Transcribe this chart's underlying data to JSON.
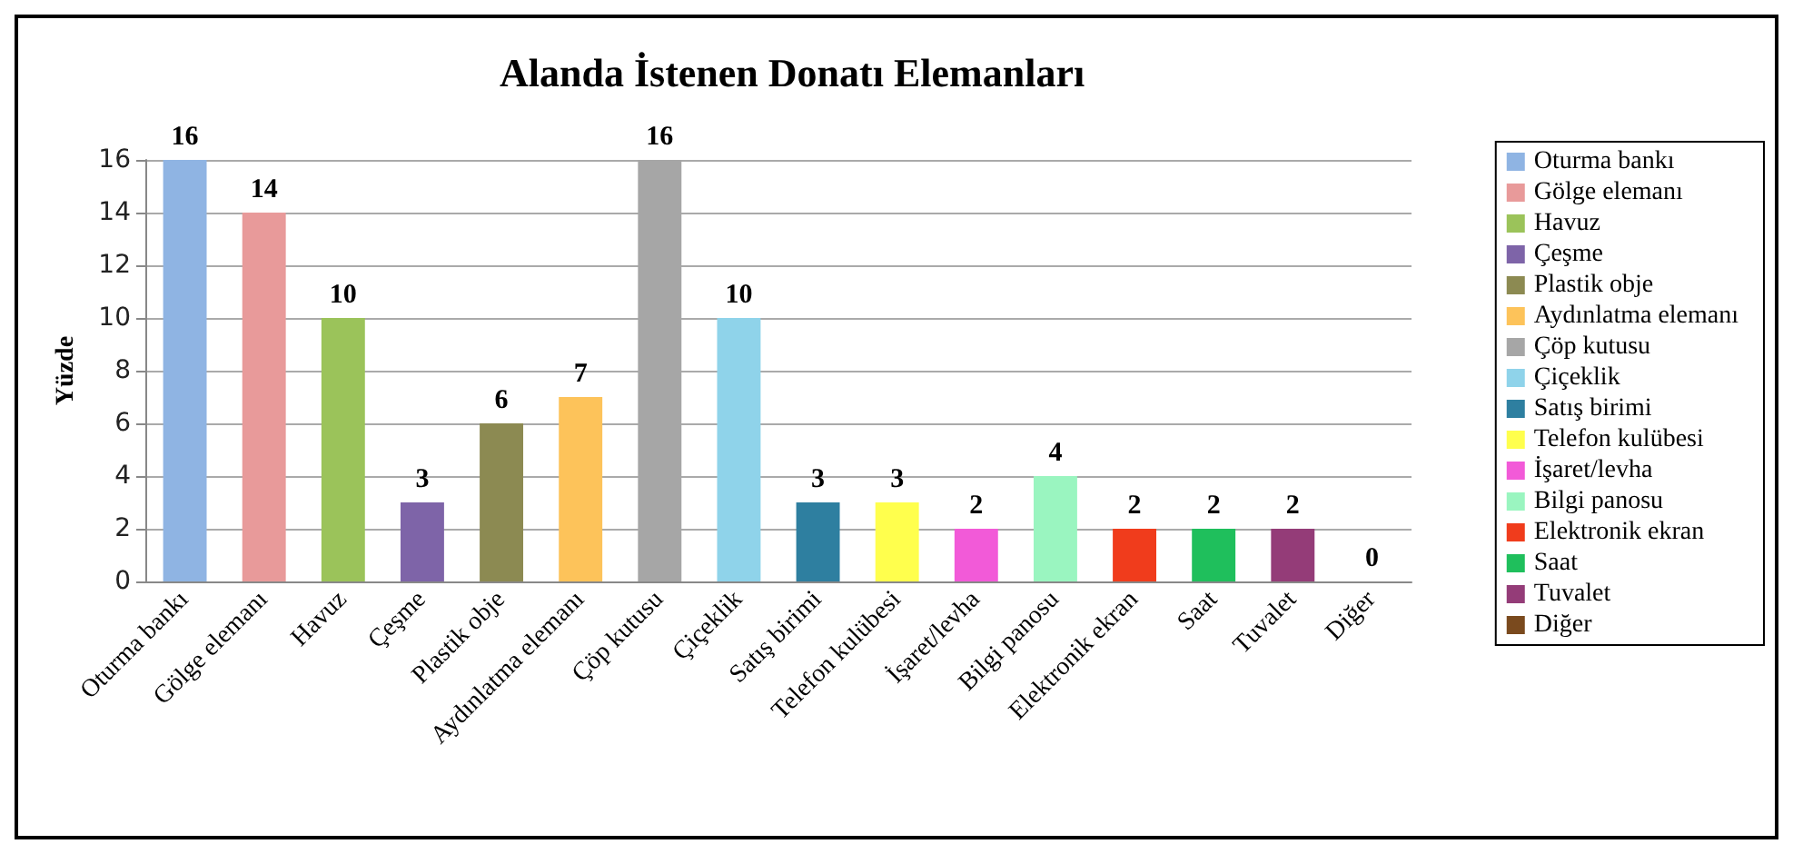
{
  "chart_data": {
    "type": "bar",
    "title": "Alanda İstenen Donatı Elemanları",
    "ylabel": "Yüzde",
    "categories": [
      "Oturma bankı",
      "Gölge elemanı",
      "Havuz",
      "Çeşme",
      "Plastik obje",
      "Aydınlatma elemanı",
      "Çöp kutusu",
      "Çiçeklik",
      "Satış birimi",
      "Telefon kulübesi",
      "İşaret/levha",
      "Bilgi panosu",
      "Elektronik ekran",
      "Saat",
      "Tuvalet",
      "Diğer"
    ],
    "series": [
      {
        "name": "Oturma bankı",
        "color": "#8fb4e3",
        "values": [
          16,
          null,
          null,
          null,
          null,
          null,
          null,
          null,
          null,
          null,
          null,
          null,
          null,
          null,
          null,
          null
        ]
      },
      {
        "name": "Gölge elemanı",
        "color": "#e89a9a",
        "values": [
          null,
          14,
          null,
          null,
          null,
          null,
          null,
          null,
          null,
          null,
          null,
          null,
          null,
          null,
          null,
          null
        ]
      },
      {
        "name": "Havuz",
        "color": "#9bc35a",
        "values": [
          null,
          null,
          10,
          null,
          null,
          null,
          null,
          null,
          null,
          null,
          null,
          null,
          null,
          null,
          null,
          null
        ]
      },
      {
        "name": "Çeşme",
        "color": "#7e64a8",
        "values": [
          null,
          null,
          null,
          3,
          null,
          null,
          null,
          null,
          null,
          null,
          null,
          null,
          null,
          null,
          null,
          null
        ]
      },
      {
        "name": "Plastik obje",
        "color": "#8c8a52",
        "values": [
          null,
          null,
          null,
          null,
          6,
          null,
          null,
          null,
          null,
          null,
          null,
          null,
          null,
          null,
          null,
          null
        ]
      },
      {
        "name": "Aydınlatma elemanı",
        "color": "#fdc35a",
        "values": [
          null,
          null,
          null,
          null,
          null,
          7,
          null,
          null,
          null,
          null,
          null,
          null,
          null,
          null,
          null,
          null
        ]
      },
      {
        "name": "Çöp kutusu",
        "color": "#a6a6a6",
        "values": [
          null,
          null,
          null,
          null,
          null,
          null,
          16,
          null,
          null,
          null,
          null,
          null,
          null,
          null,
          null,
          null
        ]
      },
      {
        "name": "Çiçeklik",
        "color": "#8fd3ea",
        "values": [
          null,
          null,
          null,
          null,
          null,
          null,
          null,
          10,
          null,
          null,
          null,
          null,
          null,
          null,
          null,
          null
        ]
      },
      {
        "name": "Satış birimi",
        "color": "#2e7fa0",
        "values": [
          null,
          null,
          null,
          null,
          null,
          null,
          null,
          null,
          3,
          null,
          null,
          null,
          null,
          null,
          null,
          null
        ]
      },
      {
        "name": "Telefon kulübesi",
        "color": "#ffff4d",
        "values": [
          null,
          null,
          null,
          null,
          null,
          null,
          null,
          null,
          null,
          3,
          null,
          null,
          null,
          null,
          null,
          null
        ]
      },
      {
        "name": "İşaret/levha",
        "color": "#f25ad8",
        "values": [
          null,
          null,
          null,
          null,
          null,
          null,
          null,
          null,
          null,
          null,
          2,
          null,
          null,
          null,
          null,
          null
        ]
      },
      {
        "name": "Bilgi panosu",
        "color": "#9af5c0",
        "values": [
          null,
          null,
          null,
          null,
          null,
          null,
          null,
          null,
          null,
          null,
          null,
          4,
          null,
          null,
          null,
          null
        ]
      },
      {
        "name": "Elektronik ekran",
        "color": "#f03c1c",
        "values": [
          null,
          null,
          null,
          null,
          null,
          null,
          null,
          null,
          null,
          null,
          null,
          null,
          2,
          null,
          null,
          null
        ]
      },
      {
        "name": "Saat",
        "color": "#1fbf5c",
        "values": [
          null,
          null,
          null,
          null,
          null,
          null,
          null,
          null,
          null,
          null,
          null,
          null,
          null,
          2,
          null,
          null
        ]
      },
      {
        "name": "Tuvalet",
        "color": "#943c78",
        "values": [
          null,
          null,
          null,
          null,
          null,
          null,
          null,
          null,
          null,
          null,
          null,
          null,
          null,
          null,
          2,
          null
        ]
      },
      {
        "name": "Diğer",
        "color": "#7a4a1e",
        "values": [
          null,
          null,
          null,
          null,
          null,
          null,
          null,
          null,
          null,
          null,
          null,
          null,
          null,
          null,
          null,
          0
        ]
      }
    ],
    "stacked": true,
    "ylim": [
      0,
      16
    ],
    "yticks": [
      0,
      2,
      4,
      6,
      8,
      10,
      12,
      14,
      16
    ],
    "grid": "y",
    "data_labels": true,
    "legend": "right"
  }
}
